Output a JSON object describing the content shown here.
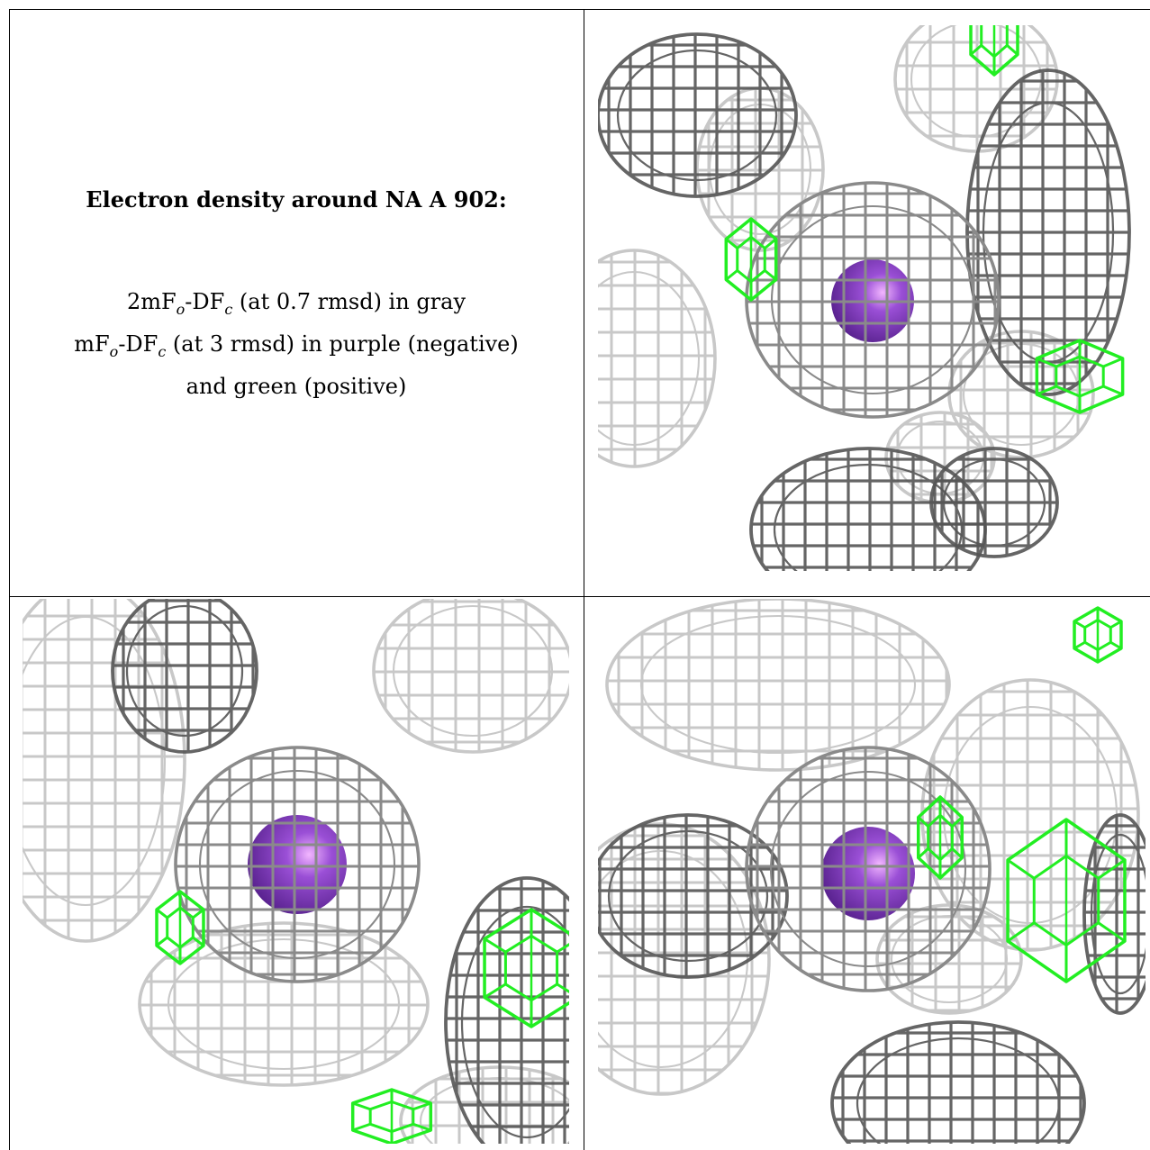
{
  "caption": {
    "title": "Electron density around NA A 902:",
    "line1": {
      "pre": "2mF",
      "sub1": "o",
      "mid": "-DF",
      "sub2": "c",
      "post": " (at 0.7 rmsd) in gray"
    },
    "line2": {
      "pre": "mF",
      "sub1": "o",
      "mid": "-DF",
      "sub2": "c",
      "post": " (at 3 rmsd) in purple (negative)"
    },
    "line3": "and green (positive)"
  },
  "colors": {
    "mesh_dark": "#555555",
    "mesh_light": "#c8c8c8",
    "positive": "#22ee22",
    "atom": "#9a4fd6"
  },
  "panels": [
    {
      "name": "view-1"
    },
    {
      "name": "view-2"
    },
    {
      "name": "view-3"
    }
  ]
}
